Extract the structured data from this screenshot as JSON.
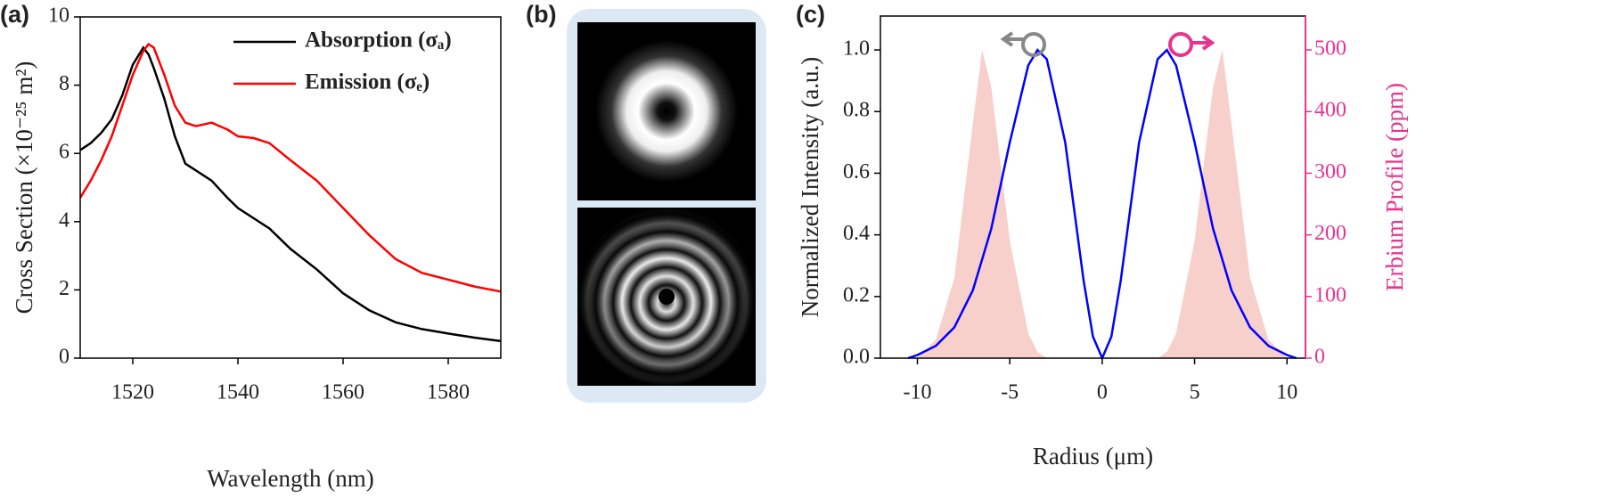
{
  "chart_data": [
    {
      "type": "line",
      "label": "(a)",
      "xlabel": "Wavelength (nm)",
      "ylabel": "Cross Section (×10⁻²⁵ m²)",
      "x": [
        1510,
        1512,
        1514,
        1516,
        1518,
        1520,
        1522,
        1523,
        1524,
        1526,
        1528,
        1530,
        1532,
        1535,
        1538,
        1540,
        1543,
        1546,
        1550,
        1555,
        1560,
        1565,
        1570,
        1575,
        1580,
        1585,
        1590
      ],
      "series": [
        {
          "name": "Absorption (σₐ)",
          "color": "#000000",
          "values": [
            6.1,
            6.3,
            6.6,
            7.0,
            7.7,
            8.6,
            9.1,
            8.9,
            8.5,
            7.6,
            6.5,
            5.7,
            5.5,
            5.2,
            4.7,
            4.4,
            4.1,
            3.8,
            3.2,
            2.6,
            1.9,
            1.4,
            1.05,
            0.85,
            0.72,
            0.6,
            0.5
          ]
        },
        {
          "name": "Emission (σₑ)",
          "color": "#ff0000",
          "values": [
            4.7,
            5.2,
            5.8,
            6.5,
            7.4,
            8.3,
            9.0,
            9.2,
            9.1,
            8.3,
            7.4,
            6.9,
            6.8,
            6.9,
            6.7,
            6.5,
            6.45,
            6.3,
            5.8,
            5.2,
            4.4,
            3.6,
            2.9,
            2.5,
            2.3,
            2.1,
            1.95
          ]
        }
      ],
      "xlim": [
        1510,
        1590
      ],
      "xticks": [
        1520,
        1540,
        1560,
        1580
      ],
      "ylim": [
        0,
        10
      ],
      "yticks": [
        0,
        2,
        4,
        6,
        8,
        10
      ],
      "legend": "upper right"
    },
    {
      "type": "image",
      "label": "(b)"
    },
    {
      "type": "line",
      "label": "(c)",
      "xlabel": "Radius (μm)",
      "ylabel": "Normalized Intensity (a.u.)",
      "y2label": "Erbium Profile (ppm)",
      "x": [
        -10.5,
        -10,
        -9,
        -8,
        -7,
        -6.5,
        -6,
        -5,
        -4,
        -3.5,
        -3,
        -2,
        -1,
        -0.5,
        0,
        0.5,
        1,
        2,
        3,
        3.5,
        4,
        5,
        6,
        6.5,
        7,
        8,
        9,
        10,
        10.5
      ],
      "series": [
        {
          "color": "#f7cfcb",
          "axis": "y2",
          "fill": true,
          "values": [
            0,
            0,
            30,
            130,
            380,
            500,
            440,
            190,
            40,
            10,
            0,
            0,
            0,
            0,
            0,
            0,
            0,
            0,
            0,
            10,
            40,
            190,
            440,
            500,
            380,
            130,
            30,
            0,
            0
          ]
        },
        {
          "color": "#0000ff",
          "values": [
            0,
            0.01,
            0.04,
            0.1,
            0.22,
            0.32,
            0.42,
            0.7,
            0.95,
            1.0,
            0.97,
            0.7,
            0.25,
            0.07,
            0,
            0.07,
            0.25,
            0.7,
            0.97,
            1.0,
            0.95,
            0.7,
            0.42,
            0.32,
            0.22,
            0.1,
            0.04,
            0.01,
            0
          ]
        }
      ],
      "xlim": [
        -12,
        11
      ],
      "xticks": [
        -10,
        -5,
        0,
        5,
        10
      ],
      "ylim": [
        0,
        1.11
      ],
      "yticks": [
        {
          "value": 0,
          "label": "0.0"
        },
        {
          "value": 0.2,
          "label": "0.2"
        },
        {
          "value": 0.4,
          "label": "0.4"
        },
        {
          "value": 0.6,
          "label": "0.6"
        },
        {
          "value": 0.8,
          "label": "0.8"
        },
        {
          "value": 1,
          "label": "1.0"
        }
      ],
      "y2lim": [
        0,
        555
      ],
      "y2ticks": [
        0,
        100,
        200,
        300,
        400,
        500
      ],
      "y2color": "#e8338f"
    }
  ]
}
